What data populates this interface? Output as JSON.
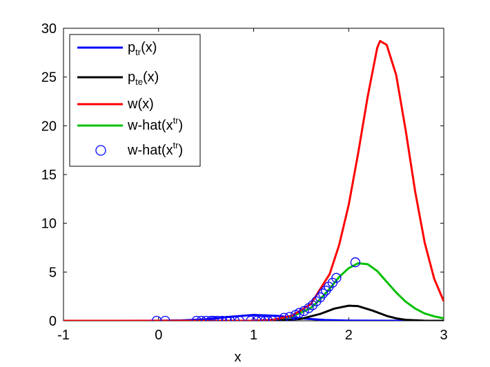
{
  "chart_data": {
    "type": "line",
    "title": "",
    "xlabel": "x",
    "ylabel": "",
    "xlim": [
      -1,
      3
    ],
    "ylim": [
      0,
      30
    ],
    "xticks": [
      "-1",
      "0",
      "1",
      "2",
      "3"
    ],
    "yticks": [
      "0",
      "5",
      "10",
      "15",
      "20",
      "25",
      "30"
    ],
    "grid": false,
    "legend_position": "top-left",
    "legend": [
      {
        "base": "p",
        "sub": "tr",
        "sup": "",
        "tail": "(x)"
      },
      {
        "base": "p",
        "sub": "te",
        "sup": "",
        "tail": "(x)"
      },
      {
        "base": "w(x)",
        "sub": "",
        "sup": "",
        "tail": ""
      },
      {
        "base": "w-hat(x",
        "sub": "",
        "sup": "tr",
        "tail": ")"
      },
      {
        "base": "w-hat(x",
        "sub": "",
        "sup": "tr",
        "tail": ")"
      }
    ],
    "series": [
      {
        "key": "ptr",
        "color": "#0000ff",
        "kind": "line",
        "points": [
          [
            -1,
            0.0
          ],
          [
            -0.5,
            0.0
          ],
          [
            0,
            0.01
          ],
          [
            0.25,
            0.04
          ],
          [
            0.5,
            0.15
          ],
          [
            0.75,
            0.4
          ],
          [
            1.0,
            0.6
          ],
          [
            1.25,
            0.5
          ],
          [
            1.5,
            0.25
          ],
          [
            1.75,
            0.08
          ],
          [
            2.0,
            0.02
          ],
          [
            2.5,
            0.0
          ],
          [
            3.0,
            0.0
          ]
        ]
      },
      {
        "key": "pte",
        "color": "#000000",
        "kind": "line",
        "points": [
          [
            -1,
            0.0
          ],
          [
            1.0,
            0.0
          ],
          [
            1.25,
            0.03
          ],
          [
            1.5,
            0.2
          ],
          [
            1.7,
            0.7
          ],
          [
            1.85,
            1.25
          ],
          [
            2.0,
            1.55
          ],
          [
            2.1,
            1.5
          ],
          [
            2.25,
            1.05
          ],
          [
            2.4,
            0.5
          ],
          [
            2.5,
            0.25
          ],
          [
            2.6,
            0.1
          ],
          [
            2.8,
            0.01
          ],
          [
            3.0,
            0.0
          ]
        ]
      },
      {
        "key": "w",
        "color": "#ff0000",
        "kind": "line",
        "points": [
          [
            -1,
            0.0
          ],
          [
            1.0,
            0.0
          ],
          [
            1.2,
            0.1
          ],
          [
            1.4,
            0.5
          ],
          [
            1.6,
            1.7
          ],
          [
            1.8,
            4.8
          ],
          [
            1.9,
            7.8
          ],
          [
            2.0,
            11.9
          ],
          [
            2.1,
            17.2
          ],
          [
            2.2,
            23.0
          ],
          [
            2.3,
            28.0
          ],
          [
            2.33,
            28.7
          ],
          [
            2.4,
            28.3
          ],
          [
            2.5,
            25.2
          ],
          [
            2.6,
            19.5
          ],
          [
            2.7,
            13.2
          ],
          [
            2.8,
            8.0
          ],
          [
            2.9,
            4.3
          ],
          [
            3.0,
            2.0
          ]
        ]
      },
      {
        "key": "what",
        "color": "#00c000",
        "kind": "line",
        "points": [
          [
            -1,
            0.0
          ],
          [
            1.0,
            0.0
          ],
          [
            1.2,
            0.1
          ],
          [
            1.4,
            0.4
          ],
          [
            1.6,
            1.3
          ],
          [
            1.7,
            2.2
          ],
          [
            1.8,
            3.3
          ],
          [
            1.9,
            4.5
          ],
          [
            2.0,
            5.4
          ],
          [
            2.1,
            5.9
          ],
          [
            2.2,
            5.8
          ],
          [
            2.3,
            5.1
          ],
          [
            2.4,
            4.0
          ],
          [
            2.5,
            2.9
          ],
          [
            2.6,
            1.95
          ],
          [
            2.7,
            1.25
          ],
          [
            2.8,
            0.75
          ],
          [
            2.9,
            0.45
          ],
          [
            3.0,
            0.25
          ]
        ]
      },
      {
        "key": "whattr",
        "color": "#0000ff",
        "kind": "scatter",
        "points": [
          [
            -0.02,
            0.0
          ],
          [
            0.07,
            0.0
          ],
          [
            0.4,
            0.0
          ],
          [
            0.45,
            0.0
          ],
          [
            0.5,
            0.0
          ],
          [
            0.55,
            0.0
          ],
          [
            0.58,
            0.0
          ],
          [
            0.62,
            0.0
          ],
          [
            0.67,
            0.0
          ],
          [
            0.72,
            0.0
          ],
          [
            0.75,
            0.0
          ],
          [
            0.8,
            0.0
          ],
          [
            0.85,
            0.0
          ],
          [
            0.97,
            0.0
          ],
          [
            1.03,
            0.0
          ],
          [
            1.08,
            0.0
          ],
          [
            1.12,
            0.0
          ],
          [
            1.15,
            0.0
          ],
          [
            1.2,
            0.0
          ],
          [
            1.32,
            0.3
          ],
          [
            1.38,
            0.4
          ],
          [
            1.44,
            0.6
          ],
          [
            1.48,
            0.8
          ],
          [
            1.53,
            1.0
          ],
          [
            1.58,
            1.3
          ],
          [
            1.62,
            1.6
          ],
          [
            1.66,
            2.0
          ],
          [
            1.7,
            2.4
          ],
          [
            1.73,
            2.8
          ],
          [
            1.76,
            3.1
          ],
          [
            1.79,
            3.5
          ],
          [
            1.83,
            3.9
          ],
          [
            1.87,
            4.4
          ],
          [
            2.07,
            6.0
          ]
        ]
      }
    ]
  }
}
